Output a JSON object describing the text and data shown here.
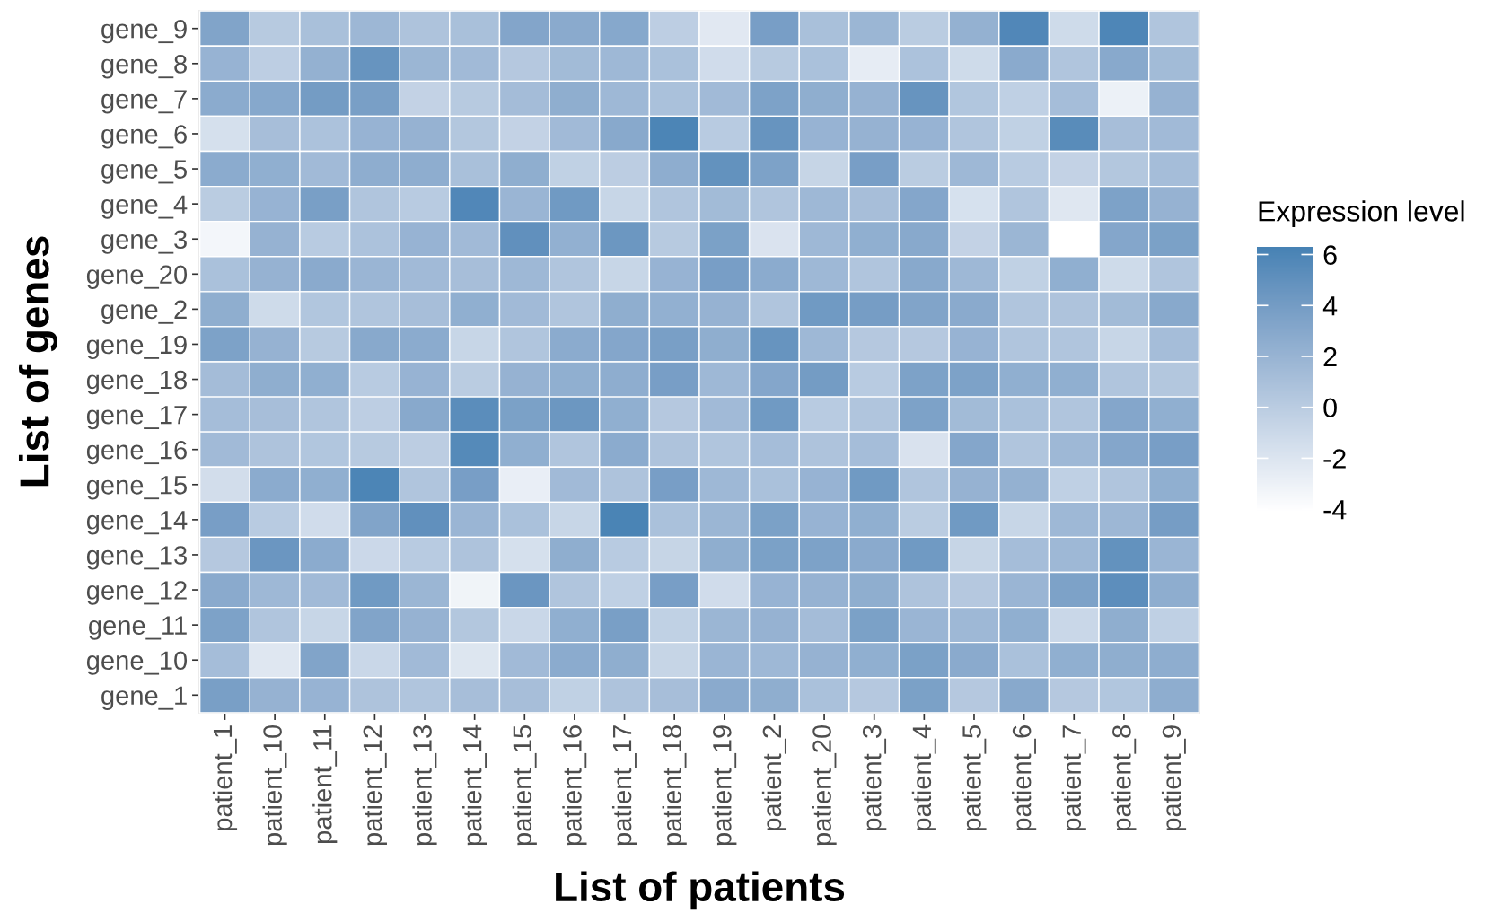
{
  "chart_data": {
    "type": "heatmap",
    "xlabel": "List of patients",
    "ylabel": "List of genes",
    "clabel": "Expression level",
    "categories": [
      "patient_1",
      "patient_10",
      "patient_11",
      "patient_12",
      "patient_13",
      "patient_14",
      "patient_15",
      "patient_16",
      "patient_17",
      "patient_18",
      "patient_19",
      "patient_2",
      "patient_20",
      "patient_3",
      "patient_4",
      "patient_5",
      "patient_6",
      "patient_7",
      "patient_8",
      "patient_9"
    ],
    "y_categories": [
      "gene_9",
      "gene_8",
      "gene_7",
      "gene_6",
      "gene_5",
      "gene_4",
      "gene_3",
      "gene_20",
      "gene_2",
      "gene_19",
      "gene_18",
      "gene_17",
      "gene_16",
      "gene_15",
      "gene_14",
      "gene_13",
      "gene_12",
      "gene_11",
      "gene_10",
      "gene_1"
    ],
    "cells": [
      [
        3.3,
        0.2,
        1,
        1.7,
        0.7,
        1,
        3.2,
        2.8,
        3,
        -0.2,
        -2.3,
        3.8,
        1,
        1.8,
        0,
        2.2,
        5.8,
        -1.2,
        5.9,
        0.6
      ],
      [
        2,
        -0.2,
        2.2,
        4.7,
        1.8,
        1.5,
        0.3,
        1.4,
        1.6,
        0.9,
        -1.3,
        0.2,
        0.9,
        -2.6,
        0.8,
        -1.2,
        2.8,
        0.6,
        2.9,
        1.4
      ],
      [
        2.7,
        3,
        4,
        3.7,
        -0.5,
        0.2,
        1.3,
        2.5,
        1.6,
        0.9,
        1.5,
        3.5,
        2.5,
        2.1,
        4.7,
        0.5,
        -0.3,
        1.2,
        -3,
        2.1
      ],
      [
        -1.6,
        1.1,
        0.8,
        2,
        2.1,
        0.4,
        -0.5,
        1.5,
        2.9,
        6,
        0.1,
        4.7,
        2,
        2.1,
        2,
        0.6,
        -0.4,
        5.4,
        1.1,
        1.5
      ],
      [
        2.7,
        2.4,
        1.5,
        2.6,
        2.6,
        1,
        2.5,
        -0.4,
        -0.1,
        2.6,
        4.9,
        3.5,
        -0.7,
        3.8,
        0,
        1.6,
        0.1,
        -0.5,
        0.4,
        1.2
      ],
      [
        0,
        2,
        3.7,
        0.6,
        0.1,
        5.8,
        1.9,
        4.2,
        -0.8,
        0.6,
        1.4,
        0.6,
        1.6,
        1.1,
        3.1,
        -1.7,
        0.6,
        -2.2,
        3.5,
        2.1
      ],
      [
        -3.4,
        2.1,
        0.1,
        0.8,
        2,
        1.5,
        5,
        2.3,
        4.4,
        0.2,
        3.6,
        -1.9,
        1.6,
        2.4,
        2.9,
        -0.5,
        1.8,
        -4.1,
        3.1,
        3.6
      ],
      [
        0.9,
        2.1,
        2.8,
        1.9,
        1.5,
        1.1,
        1.6,
        0.6,
        -0.8,
        2,
        3.8,
        2.7,
        1.6,
        0.6,
        2.9,
        1.6,
        -0.4,
        2.4,
        -1.2,
        0.6
      ],
      [
        2.5,
        -1.2,
        0.5,
        0.6,
        1.1,
        2.4,
        1.5,
        0.6,
        2.5,
        2.3,
        2.1,
        0.6,
        4.2,
        3.9,
        3.3,
        2.8,
        0.6,
        0.7,
        1.4,
        2.9
      ],
      [
        3.5,
        2.1,
        0.2,
        2.9,
        2.7,
        -0.8,
        0.6,
        2.7,
        3.1,
        3.7,
        2.5,
        4.7,
        1.6,
        0.3,
        0.3,
        2,
        0.6,
        0.6,
        -0.8,
        1.2
      ],
      [
        1.3,
        2.5,
        2.4,
        0.1,
        2,
        0,
        2.1,
        2.4,
        2.6,
        3.8,
        1.6,
        3.1,
        4,
        0.1,
        3.5,
        3.5,
        2.4,
        2.4,
        0.6,
        0.4
      ],
      [
        1.2,
        1.1,
        0.6,
        -0.2,
        2.9,
        5.3,
        3.6,
        4.4,
        2.4,
        0.3,
        1.5,
        4.2,
        0.1,
        0.6,
        3.5,
        1.4,
        0.9,
        0.6,
        3.1,
        2.4
      ],
      [
        1.5,
        0.7,
        0.5,
        0.2,
        -0.1,
        5.6,
        2.4,
        0.6,
        2.7,
        0.7,
        0.6,
        1.2,
        0.7,
        1.2,
        -1.8,
        3.1,
        0.6,
        1.6,
        3.1,
        3.8
      ],
      [
        -1.4,
        2.7,
        2.4,
        6,
        0.6,
        3.8,
        -2.8,
        1.5,
        0.7,
        3.8,
        1.6,
        0.9,
        2,
        4.2,
        0.6,
        2.1,
        2.2,
        -0.3,
        0.6,
        2.4
      ],
      [
        3.8,
        0.1,
        -1.3,
        3.3,
        5,
        1.9,
        0.9,
        -0.8,
        6.1,
        0.9,
        1.8,
        3.6,
        2,
        2.4,
        0,
        4.2,
        -0.8,
        1.6,
        1.7,
        3.9
      ],
      [
        0.3,
        4.5,
        2.7,
        -1,
        0.1,
        0.7,
        -1.6,
        2.5,
        0.1,
        -0.7,
        2.5,
        3.6,
        3.5,
        2.8,
        4.2,
        -0.7,
        1.2,
        1.6,
        4.9,
        1.9
      ],
      [
        2.8,
        1.6,
        1.5,
        4.2,
        1.8,
        -3.2,
        4.5,
        0.6,
        -0.3,
        3.8,
        -1.3,
        2,
        2.1,
        2.5,
        0.7,
        0.3,
        1.9,
        3.5,
        5.2,
        2.6
      ],
      [
        3.5,
        0.6,
        -0.8,
        3.3,
        2.1,
        0.4,
        -0.9,
        2.4,
        3.7,
        -0.4,
        1.8,
        2.1,
        1.3,
        3.6,
        1.9,
        1.6,
        2.4,
        -0.9,
        2.5,
        -0.3
      ],
      [
        1.2,
        -2.2,
        3.3,
        -0.9,
        1.5,
        -2.1,
        1.5,
        2.7,
        2.5,
        -0.7,
        1.9,
        1.6,
        2.1,
        2.4,
        3.6,
        2.8,
        0.9,
        2.4,
        2.5,
        2.6
      ],
      [
        3.7,
        2.1,
        2,
        0.7,
        0.6,
        1.1,
        1.1,
        -0.4,
        0.7,
        1.1,
        2.8,
        2.5,
        0.9,
        0.3,
        3.6,
        0.3,
        2.9,
        0.3,
        0.5,
        2.6
      ]
    ],
    "clim": [
      -4.1,
      6.3
    ],
    "cticks": [
      -4,
      -2,
      0,
      2,
      4,
      6
    ]
  }
}
